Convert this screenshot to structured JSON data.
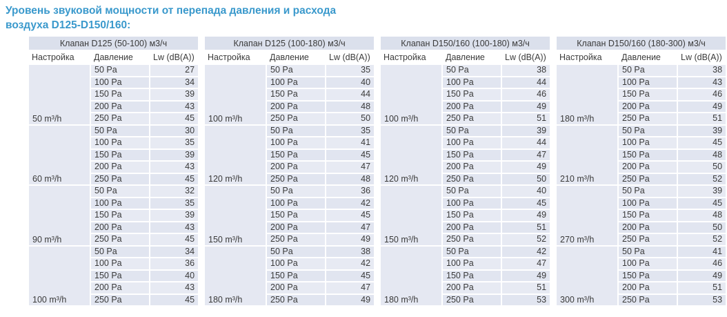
{
  "page_title": {
    "line1": "Уровень звуковой мощности от перепада давления и расхода",
    "line2": "воздуха D125-D150/160:"
  },
  "columns": {
    "setting": "Настройка",
    "pressure": "Давление",
    "lw": "Lw (dB(A))"
  },
  "tables": [
    {
      "title": "Клапан D125 (50-100) м3/ч",
      "groups": [
        {
          "setting": "50 m³/h",
          "rows": [
            [
              "50 Pa",
              "27"
            ],
            [
              "100 Pa",
              "34"
            ],
            [
              "150 Pa",
              "39"
            ],
            [
              "200 Pa",
              "43"
            ],
            [
              "250 Pa",
              "45"
            ]
          ]
        },
        {
          "setting": "60 m³/h",
          "rows": [
            [
              "50 Pa",
              "30"
            ],
            [
              "100 Pa",
              "35"
            ],
            [
              "150 Pa",
              "39"
            ],
            [
              "200 Pa",
              "43"
            ],
            [
              "250 Pa",
              "45"
            ]
          ]
        },
        {
          "setting": "90 m³/h",
          "rows": [
            [
              "50 Pa",
              "32"
            ],
            [
              "100 Pa",
              "35"
            ],
            [
              "150 Pa",
              "39"
            ],
            [
              "200 Pa",
              "43"
            ],
            [
              "250 Pa",
              "45"
            ]
          ]
        },
        {
          "setting": "100 m³/h",
          "rows": [
            [
              "50 Pa",
              "34"
            ],
            [
              "100 Pa",
              "36"
            ],
            [
              "150 Pa",
              "40"
            ],
            [
              "200 Pa",
              "43"
            ],
            [
              "250 Pa",
              "45"
            ]
          ]
        }
      ]
    },
    {
      "title": "Клапан D125 (100-180) м3/ч",
      "groups": [
        {
          "setting": "100 m³/h",
          "rows": [
            [
              "50 Pa",
              "35"
            ],
            [
              "100 Pa",
              "40"
            ],
            [
              "150 Pa",
              "44"
            ],
            [
              "200 Pa",
              "48"
            ],
            [
              "250 Pa",
              "50"
            ]
          ]
        },
        {
          "setting": "120 m³/h",
          "rows": [
            [
              "50 Pa",
              "35"
            ],
            [
              "100 Pa",
              "41"
            ],
            [
              "150 Pa",
              "45"
            ],
            [
              "200 Pa",
              "47"
            ],
            [
              "250 Pa",
              "48"
            ]
          ]
        },
        {
          "setting": "150 m³/h",
          "rows": [
            [
              "50 Pa",
              "36"
            ],
            [
              "100 Pa",
              "42"
            ],
            [
              "150 Pa",
              "45"
            ],
            [
              "200 Pa",
              "47"
            ],
            [
              "250 Pa",
              "49"
            ]
          ]
        },
        {
          "setting": "180 m³/h",
          "rows": [
            [
              "50 Pa",
              "38"
            ],
            [
              "100 Pa",
              "42"
            ],
            [
              "150 Pa",
              "45"
            ],
            [
              "200 Pa",
              "47"
            ],
            [
              "250 Pa",
              "49"
            ]
          ]
        }
      ]
    },
    {
      "title": "Клапан D150/160 (100-180) м3/ч",
      "groups": [
        {
          "setting": "100 m³/h",
          "rows": [
            [
              "50 Pa",
              "38"
            ],
            [
              "100 Pa",
              "44"
            ],
            [
              "150 Pa",
              "46"
            ],
            [
              "200 Pa",
              "49"
            ],
            [
              "250 Pa",
              "51"
            ]
          ]
        },
        {
          "setting": "120 m³/h",
          "rows": [
            [
              "50 Pa",
              "39"
            ],
            [
              "100 Pa",
              "44"
            ],
            [
              "150 Pa",
              "47"
            ],
            [
              "200 Pa",
              "49"
            ],
            [
              "250 Pa",
              "50"
            ]
          ]
        },
        {
          "setting": "150 m³/h",
          "rows": [
            [
              "50 Pa",
              "40"
            ],
            [
              "100 Pa",
              "45"
            ],
            [
              "150 Pa",
              "49"
            ],
            [
              "200 Pa",
              "51"
            ],
            [
              "250 Pa",
              "52"
            ]
          ]
        },
        {
          "setting": "180 m³/h",
          "rows": [
            [
              "50 Pa",
              "42"
            ],
            [
              "100 Pa",
              "47"
            ],
            [
              "150 Pa",
              "49"
            ],
            [
              "200 Pa",
              "51"
            ],
            [
              "250 Pa",
              "53"
            ]
          ]
        }
      ]
    },
    {
      "title": "Клапан D150/160 (180-300) м3/ч",
      "groups": [
        {
          "setting": "180 m³/h",
          "rows": [
            [
              "50 Pa",
              "38"
            ],
            [
              "100 Pa",
              "43"
            ],
            [
              "150 Pa",
              "46"
            ],
            [
              "200 Pa",
              "49"
            ],
            [
              "250 Pa",
              "51"
            ]
          ]
        },
        {
          "setting": "210 m³/h",
          "rows": [
            [
              "50 Pa",
              "39"
            ],
            [
              "100 Pa",
              "45"
            ],
            [
              "150 Pa",
              "48"
            ],
            [
              "200 Pa",
              "50"
            ],
            [
              "250 Pa",
              "52"
            ]
          ]
        },
        {
          "setting": "270 m³/h",
          "rows": [
            [
              "50 Pa",
              "39"
            ],
            [
              "100 Pa",
              "45"
            ],
            [
              "150 Pa",
              "48"
            ],
            [
              "200 Pa",
              "50"
            ],
            [
              "250 Pa",
              "52"
            ]
          ]
        },
        {
          "setting": "300 m³/h",
          "rows": [
            [
              "50 Pa",
              "41"
            ],
            [
              "100 Pa",
              "46"
            ],
            [
              "150 Pa",
              "49"
            ],
            [
              "200 Pa",
              "51"
            ],
            [
              "250 Pa",
              "53"
            ]
          ]
        }
      ]
    }
  ]
}
